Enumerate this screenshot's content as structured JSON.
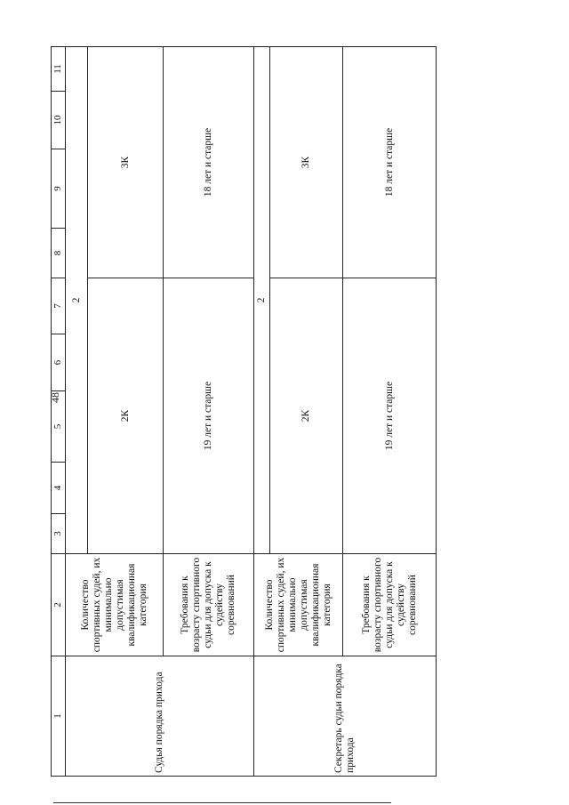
{
  "page_number": "48",
  "table": {
    "column_numbers": [
      "1",
      "2",
      "3",
      "4",
      "5",
      "6",
      "7",
      "8",
      "9",
      "10",
      "11"
    ],
    "groups": [
      {
        "role": "Судья порядка прихода",
        "count_marker": "2",
        "rows": [
          {
            "label": "Количество спортивных судей, их минимально допустимая квалификационная категория",
            "cols_3_7": "2К",
            "cols_8_11": "3К"
          },
          {
            "label": "Требования к возрасту спортивного судьи для допуска к судейству соревнований",
            "cols_3_7": "19 лет и старше",
            "cols_8_11": "18 лет и старше"
          }
        ]
      },
      {
        "role": "Секретарь судьи порядка прихода",
        "count_marker": "2",
        "rows": [
          {
            "label": "Количество спортивных судей, их минимально допустимая квалификационная категория",
            "cols_3_7": "2К",
            "cols_8_11": "3К"
          },
          {
            "label": "Требования к возрасту спортивного судьи для допуска к судейству соревнований",
            "cols_3_7": "19 лет и старше",
            "cols_8_11": "18 лет и старше"
          }
        ]
      }
    ]
  }
}
